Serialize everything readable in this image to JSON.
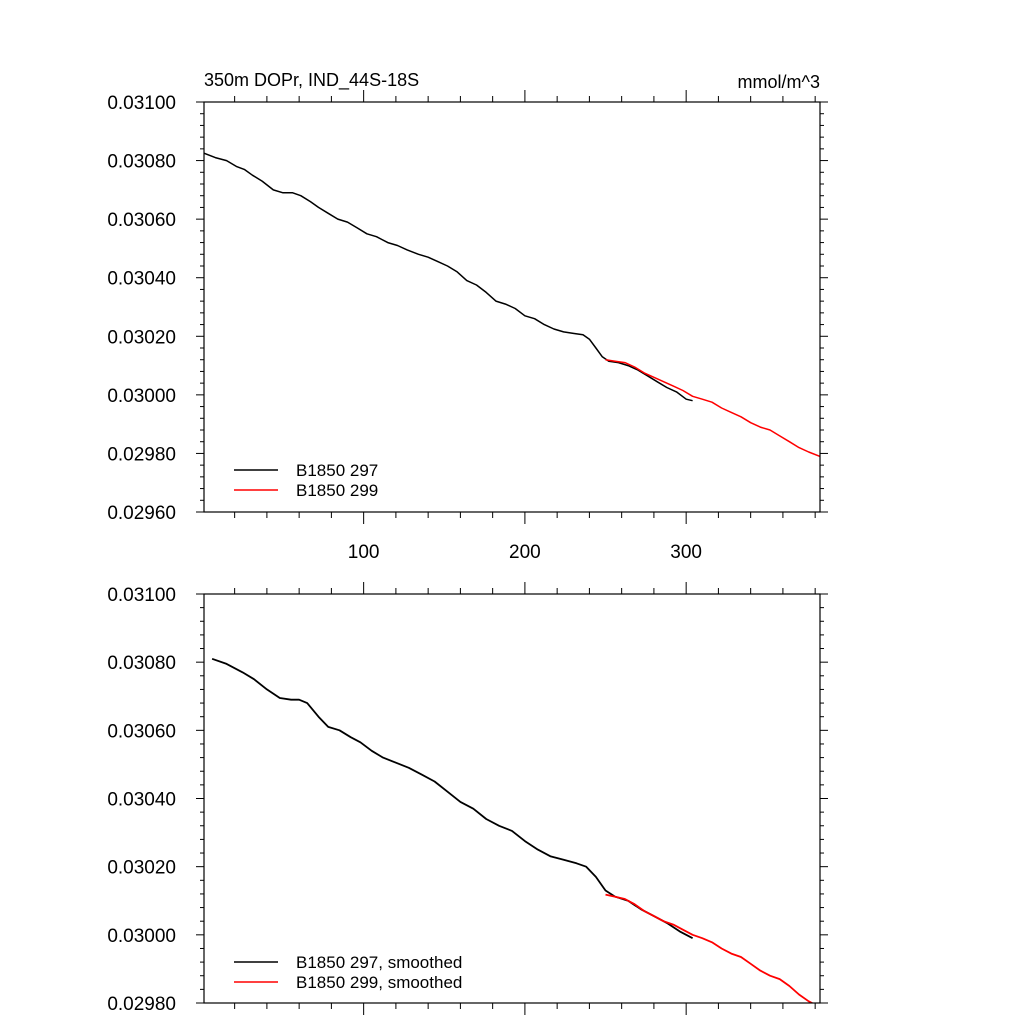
{
  "chart_data": [
    {
      "type": "line",
      "title": "350m DOPr, IND_44S-18S",
      "units": "mmol/m^3",
      "xlabel": "",
      "ylabel": "",
      "xlim": [
        1,
        383
      ],
      "ylim": [
        0.0296,
        0.031
      ],
      "xticks": [
        100,
        200,
        300
      ],
      "xtick_labels": [
        "100",
        "200",
        "300"
      ],
      "yticks": [
        0.0296,
        0.0298,
        0.03,
        0.0302,
        0.0304,
        0.0306,
        0.0308,
        0.031
      ],
      "ytick_labels": [
        "0.02960",
        "0.02980",
        "0.03000",
        "0.03020",
        "0.03040",
        "0.03060",
        "0.03080",
        "0.03100"
      ],
      "grid": false,
      "legend_position": "bottom-left",
      "series": [
        {
          "name": "B1850 297",
          "color": "#000000",
          "x": [
            1,
            8,
            15,
            21,
            26,
            31,
            37,
            44,
            50,
            56,
            61,
            67,
            72,
            78,
            84,
            90,
            96,
            102,
            108,
            115,
            121,
            127,
            134,
            140,
            146,
            152,
            158,
            164,
            170,
            176,
            182,
            188,
            194,
            200,
            206,
            212,
            218,
            224,
            230,
            236,
            240,
            244,
            248,
            252,
            258,
            264,
            270,
            276,
            282,
            288,
            294,
            300,
            304
          ],
          "y": [
            0.030825,
            0.03081,
            0.0308,
            0.03078,
            0.03077,
            0.03075,
            0.03073,
            0.0307,
            0.03069,
            0.03069,
            0.03068,
            0.03066,
            0.03064,
            0.03062,
            0.0306,
            0.03059,
            0.03057,
            0.03055,
            0.03054,
            0.03052,
            0.03051,
            0.030495,
            0.03048,
            0.03047,
            0.030455,
            0.03044,
            0.03042,
            0.03039,
            0.030375,
            0.03035,
            0.03032,
            0.03031,
            0.030295,
            0.03027,
            0.03026,
            0.03024,
            0.030225,
            0.030215,
            0.03021,
            0.030205,
            0.03019,
            0.03016,
            0.03013,
            0.030115,
            0.03011,
            0.0301,
            0.030085,
            0.030065,
            0.030045,
            0.030025,
            0.03001,
            0.029985,
            0.02998
          ]
        },
        {
          "name": "B1850 299",
          "color": "#ff0000",
          "x": [
            250,
            256,
            262,
            268,
            274,
            280,
            286,
            292,
            298,
            304,
            310,
            316,
            322,
            328,
            334,
            340,
            346,
            352,
            358,
            364,
            370,
            376,
            383
          ],
          "y": [
            0.03012,
            0.030115,
            0.03011,
            0.030095,
            0.030075,
            0.03006,
            0.030045,
            0.03003,
            0.030015,
            0.029995,
            0.029985,
            0.029975,
            0.029955,
            0.02994,
            0.029925,
            0.029905,
            0.02989,
            0.02988,
            0.02986,
            0.02984,
            0.02982,
            0.029805,
            0.02979
          ]
        }
      ]
    },
    {
      "type": "line",
      "title": "",
      "xlabel": "",
      "ylabel": "",
      "xlim": [
        1,
        383
      ],
      "ylim": [
        0.0298,
        0.031
      ],
      "xticks": [
        100,
        200,
        300
      ],
      "yticks": [
        0.0298,
        0.03,
        0.0302,
        0.0304,
        0.0306,
        0.0308,
        0.031
      ],
      "ytick_labels": [
        "0.02980",
        "0.03000",
        "0.03020",
        "0.03040",
        "0.03060",
        "0.03080",
        "0.03100"
      ],
      "grid": false,
      "legend_position": "bottom-left",
      "series": [
        {
          "name": "B1850 297, smoothed",
          "color": "#000000",
          "x": [
            6,
            15,
            25,
            32,
            40,
            48,
            55,
            60,
            65,
            72,
            78,
            85,
            92,
            98,
            105,
            112,
            120,
            128,
            136,
            144,
            152,
            160,
            168,
            176,
            184,
            192,
            200,
            208,
            216,
            224,
            232,
            238,
            244,
            250,
            256,
            264,
            272,
            280,
            288,
            296,
            304
          ],
          "y": [
            0.03081,
            0.030795,
            0.03077,
            0.03075,
            0.03072,
            0.030695,
            0.03069,
            0.03069,
            0.03068,
            0.03064,
            0.03061,
            0.0306,
            0.03058,
            0.030565,
            0.03054,
            0.03052,
            0.030505,
            0.03049,
            0.03047,
            0.03045,
            0.03042,
            0.03039,
            0.03037,
            0.03034,
            0.03032,
            0.030305,
            0.030275,
            0.03025,
            0.03023,
            0.03022,
            0.03021,
            0.0302,
            0.03017,
            0.03013,
            0.030112,
            0.0301,
            0.030075,
            0.030055,
            0.030035,
            0.03001,
            0.02999
          ]
        },
        {
          "name": "B1850 299, smoothed",
          "color": "#ff0000",
          "x": [
            250,
            256,
            262,
            268,
            274,
            280,
            286,
            292,
            298,
            304,
            310,
            316,
            322,
            328,
            334,
            340,
            346,
            352,
            358,
            364,
            370,
            376,
            380
          ],
          "y": [
            0.030118,
            0.030112,
            0.030105,
            0.03009,
            0.03007,
            0.030055,
            0.03004,
            0.03003,
            0.030015,
            0.03,
            0.02999,
            0.029978,
            0.02996,
            0.029945,
            0.029935,
            0.029915,
            0.029895,
            0.02988,
            0.02987,
            0.02985,
            0.029825,
            0.029805,
            0.029795
          ]
        }
      ]
    }
  ]
}
